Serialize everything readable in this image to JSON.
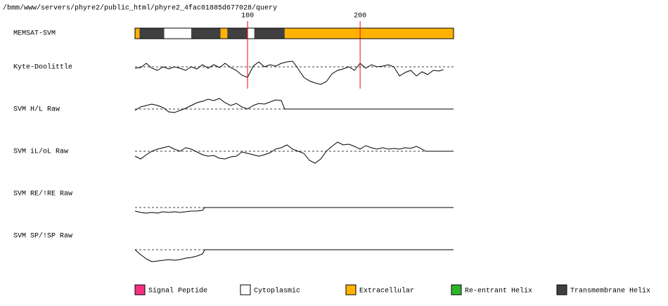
{
  "path_text": "/bmm/www/servers/phyre2/public_html/phyre2_4fac01885d677028/query",
  "chart_data": {
    "type": "tracks",
    "xlim": [
      0,
      283
    ],
    "xticks": [
      100,
      200
    ],
    "tick_color": "#ff0000",
    "memsat": {
      "label": "MEMSAT-SVM",
      "segments": [
        {
          "start": 0,
          "end": 4,
          "color": "#ffb300"
        },
        {
          "start": 4,
          "end": 26,
          "color": "#404040"
        },
        {
          "start": 26,
          "end": 50,
          "color": "#ffffff"
        },
        {
          "start": 50,
          "end": 76,
          "color": "#404040"
        },
        {
          "start": 76,
          "end": 82,
          "color": "#ffb300"
        },
        {
          "start": 82,
          "end": 100,
          "color": "#404040"
        },
        {
          "start": 100,
          "end": 106,
          "color": "#ffffff"
        },
        {
          "start": 106,
          "end": 133,
          "color": "#404040"
        },
        {
          "start": 133,
          "end": 283,
          "color": "#ffb300"
        }
      ]
    },
    "traces": [
      {
        "label": "Kyte-Doolittle",
        "x": [
          0,
          5,
          10,
          15,
          20,
          25,
          30,
          35,
          40,
          45,
          50,
          55,
          60,
          65,
          70,
          75,
          80,
          85,
          90,
          95,
          100,
          105,
          110,
          115,
          120,
          125,
          130,
          135,
          140,
          145,
          150,
          155,
          160,
          165,
          170,
          175,
          180,
          185,
          190,
          195,
          200,
          205,
          210,
          215,
          220,
          225,
          230,
          235,
          240,
          245,
          250,
          255,
          260,
          265,
          270,
          274
        ],
        "values": [
          -2,
          -1,
          5,
          -2,
          -5,
          0,
          -3,
          0,
          -2,
          -5,
          0,
          -3,
          3,
          -2,
          3,
          -1,
          5,
          -1,
          -5,
          -12,
          -15,
          1,
          7,
          0,
          3,
          1,
          5,
          7,
          8,
          -3,
          -15,
          -20,
          -23,
          -25,
          -21,
          -10,
          -5,
          -3,
          0,
          -5,
          5,
          -2,
          3,
          0,
          1,
          3,
          0,
          -13,
          -8,
          -5,
          -13,
          -7,
          -11,
          -5,
          -6,
          -4
        ]
      },
      {
        "label": "SVM H/L Raw",
        "x": [
          0,
          5,
          10,
          15,
          20,
          25,
          30,
          35,
          40,
          45,
          50,
          55,
          60,
          65,
          70,
          75,
          80,
          85,
          90,
          95,
          100,
          105,
          110,
          115,
          120,
          125,
          130,
          133,
          283
        ],
        "values": [
          -2,
          3,
          5,
          7,
          5,
          2,
          -4,
          -5,
          -2,
          1,
          5,
          9,
          11,
          14,
          12,
          15,
          9,
          5,
          8,
          3,
          0,
          5,
          8,
          7,
          10,
          13,
          12,
          0,
          0
        ]
      },
      {
        "label": "SVM iL/oL Raw",
        "x": [
          0,
          5,
          10,
          15,
          20,
          25,
          30,
          35,
          40,
          45,
          50,
          55,
          60,
          65,
          70,
          75,
          80,
          85,
          90,
          95,
          100,
          105,
          110,
          115,
          120,
          125,
          130,
          135,
          140,
          145,
          150,
          155,
          160,
          165,
          170,
          175,
          180,
          185,
          190,
          195,
          200,
          205,
          210,
          215,
          220,
          225,
          230,
          235,
          240,
          245,
          250,
          255,
          258,
          283
        ],
        "values": [
          -7,
          -11,
          -5,
          0,
          3,
          5,
          7,
          3,
          0,
          5,
          3,
          -1,
          -5,
          -7,
          -6,
          -10,
          -11,
          -8,
          -7,
          -1,
          -3,
          -5,
          -7,
          -5,
          -2,
          3,
          5,
          9,
          3,
          0,
          -3,
          -13,
          -17,
          -11,
          0,
          7,
          13,
          9,
          10,
          7,
          3,
          8,
          5,
          3,
          5,
          3,
          4,
          3,
          5,
          4,
          7,
          3,
          0,
          0
        ]
      },
      {
        "label": "SVM RE/!RE Raw",
        "x": [
          0,
          5,
          10,
          15,
          20,
          25,
          30,
          35,
          40,
          45,
          50,
          55,
          60,
          62,
          283
        ],
        "values": [
          -5,
          -7,
          -8,
          -7,
          -8,
          -6,
          -7,
          -6,
          -7,
          -6,
          -5,
          -5,
          -4,
          0,
          0
        ]
      },
      {
        "label": "SVM SP/!SP Raw",
        "x": [
          0,
          5,
          10,
          15,
          20,
          25,
          30,
          35,
          40,
          45,
          50,
          55,
          60,
          62,
          283
        ],
        "values": [
          0,
          -7,
          -13,
          -17,
          -16,
          -15,
          -14,
          -15,
          -14,
          -12,
          -11,
          -9,
          -6,
          0,
          0
        ]
      }
    ],
    "legend": [
      {
        "name": "Signal Peptide",
        "color": "#f5317f"
      },
      {
        "name": "Cytoplasmic",
        "color": "#ffffff"
      },
      {
        "name": "Extracellular",
        "color": "#ffb300"
      },
      {
        "name": "Re-entrant Helix",
        "color": "#2db52a"
      },
      {
        "name": "Transmembrane Helix",
        "color": "#404040"
      }
    ]
  }
}
